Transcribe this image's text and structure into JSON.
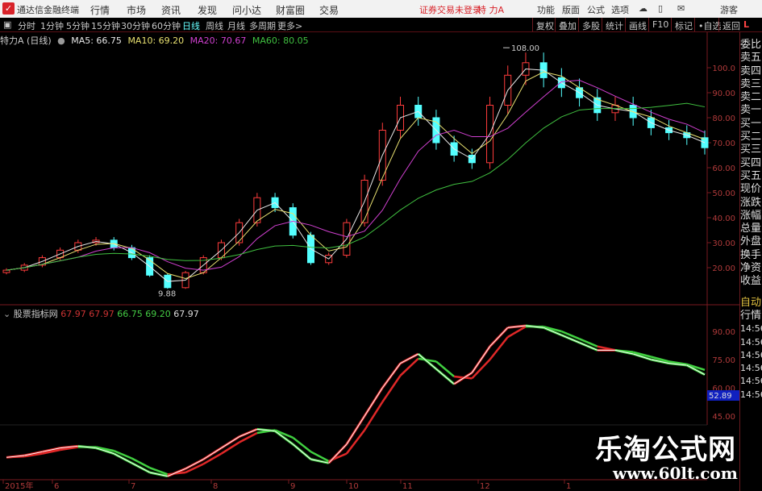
{
  "app": {
    "title": "通达信金融终端",
    "menu": [
      "行情",
      "市场",
      "资讯",
      "发现",
      "问小达",
      "财富圈",
      "交易"
    ],
    "login_status": "证券交易未登录",
    "stock_name": "特 力A",
    "right_menu": [
      "功能",
      "版面",
      "公式",
      "选项"
    ],
    "user": "游客"
  },
  "toolbar": {
    "periods": [
      "分时",
      "1分钟",
      "5分钟",
      "15分钟",
      "30分钟",
      "60分钟",
      "日线",
      "周线",
      "月线",
      "多周期",
      "更多>"
    ],
    "active_period": "日线",
    "buttons": [
      "复权",
      "叠加",
      "多股",
      "统计",
      "画线",
      "F10",
      "标记",
      "•自选",
      "返回"
    ]
  },
  "chart_info": {
    "title": "特力A (日线)",
    "ma5": "MA5: 66.75",
    "ma10": "MA10: 69.20",
    "ma20": "MA20: 70.67",
    "ma60": "MA60: 80.05",
    "high_label": "108.00",
    "low_label": "9.88"
  },
  "colors": {
    "up": "#ff3c3c",
    "down": "#54ffff",
    "ma5": "#e8e8e8",
    "ma10": "#e8e070",
    "ma20": "#d040d0",
    "ma60": "#40c040",
    "accent": "#d8232a"
  },
  "indicator": {
    "name": "股票指标网",
    "v1": "67.97",
    "v2": "67.97",
    "v3": "66.75",
    "v4": "69.20",
    "v5": "67.97",
    "current_tag": "52.89"
  },
  "right_panel": [
    "委比",
    "卖五",
    "卖四",
    "卖三",
    "卖二",
    "卖一",
    "买一",
    "买二",
    "买三",
    "买四",
    "买五",
    "现价",
    "涨跌",
    "涨幅",
    "总量",
    "外盘",
    "换手",
    "净资",
    "收益",
    "自动",
    "行情",
    "14:56",
    "14:56",
    "14:56",
    "14:56",
    "14:56",
    "14:56"
  ],
  "watermark": {
    "name": "乐淘公式网",
    "url": "www.60lt.com"
  },
  "chart_data": [
    {
      "type": "candlestick",
      "y_ticks": [
        "100.0",
        "90.00",
        "80.00",
        "70.00",
        "60.00",
        "50.00",
        "40.00",
        "30.00",
        "20.00"
      ],
      "ylim": [
        10,
        110
      ],
      "x_ticks": [
        "2015年",
        "6",
        "7",
        "8",
        "9",
        "10",
        "11",
        "12",
        "1"
      ],
      "closes": [
        19,
        21,
        24,
        27,
        30,
        31,
        28,
        24,
        17,
        12,
        18,
        24,
        30,
        38,
        48,
        44,
        33,
        22,
        25,
        38,
        55,
        75,
        85,
        80,
        70,
        65,
        62,
        85,
        97,
        102,
        96,
        92,
        88,
        82,
        85,
        80,
        76,
        74,
        72,
        68
      ]
    },
    {
      "type": "line",
      "y_ticks": [
        "90.00",
        "75.00",
        "60.00",
        "45.00"
      ],
      "ylim": [
        10,
        100
      ],
      "values": [
        23,
        24,
        26,
        28,
        29,
        28,
        25,
        20,
        15,
        13,
        17,
        22,
        28,
        34,
        38,
        37,
        30,
        22,
        20,
        30,
        45,
        60,
        73,
        78,
        70,
        62,
        68,
        82,
        92,
        93,
        92,
        88,
        84,
        80,
        80,
        78,
        75,
        73,
        72,
        67
      ]
    }
  ]
}
